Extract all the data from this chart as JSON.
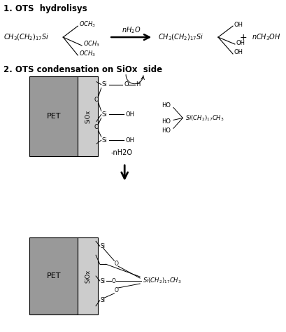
{
  "bg_color": "#ffffff",
  "text_color": "#000000",
  "gray_pet": "#999999",
  "gray_siox": "#cccccc",
  "title1": "1. OTS  hydrolisys",
  "title2": "2. OTS condensation on SiOx  side",
  "figsize": [
    4.09,
    4.74
  ],
  "dpi": 100,
  "pet_label": "PET",
  "siox_label": "SiOx"
}
